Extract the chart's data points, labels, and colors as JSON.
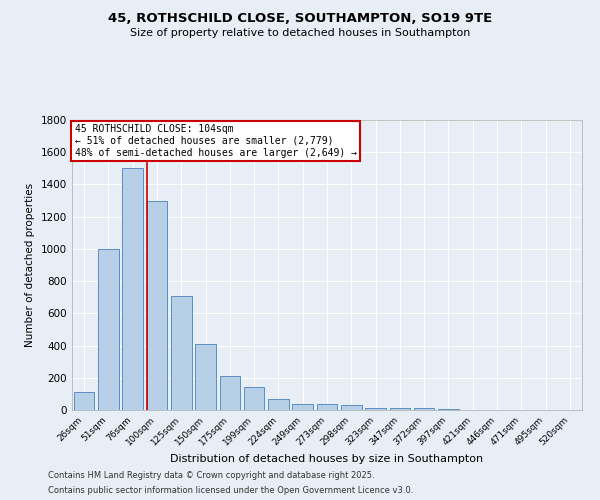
{
  "title": "45, ROTHSCHILD CLOSE, SOUTHAMPTON, SO19 9TE",
  "subtitle": "Size of property relative to detached houses in Southampton",
  "xlabel": "Distribution of detached houses by size in Southampton",
  "ylabel": "Number of detached properties",
  "categories": [
    "26sqm",
    "51sqm",
    "76sqm",
    "100sqm",
    "125sqm",
    "150sqm",
    "175sqm",
    "199sqm",
    "224sqm",
    "249sqm",
    "273sqm",
    "298sqm",
    "323sqm",
    "347sqm",
    "372sqm",
    "397sqm",
    "421sqm",
    "446sqm",
    "471sqm",
    "495sqm",
    "520sqm"
  ],
  "values": [
    110,
    1000,
    1500,
    1300,
    710,
    410,
    210,
    140,
    70,
    40,
    35,
    30,
    15,
    10,
    10,
    5,
    0,
    0,
    0,
    0,
    0
  ],
  "bar_color": "#b8cfe8",
  "bar_edge_color": "#5b8ec4",
  "red_line_x": 2.575,
  "annotation_text": "45 ROTHSCHILD CLOSE: 104sqm\n← 51% of detached houses are smaller (2,779)\n48% of semi-detached houses are larger (2,649) →",
  "annotation_box_color": "#ffffff",
  "annotation_box_edge": "#cc0000",
  "red_line_color": "#cc0000",
  "ylim": [
    0,
    1800
  ],
  "yticks": [
    0,
    200,
    400,
    600,
    800,
    1000,
    1200,
    1400,
    1600,
    1800
  ],
  "bg_color": "#e8eef5",
  "grid_color": "#ffffff",
  "footer1": "Contains HM Land Registry data © Crown copyright and database right 2025.",
  "footer2": "Contains public sector information licensed under the Open Government Licence v3.0."
}
